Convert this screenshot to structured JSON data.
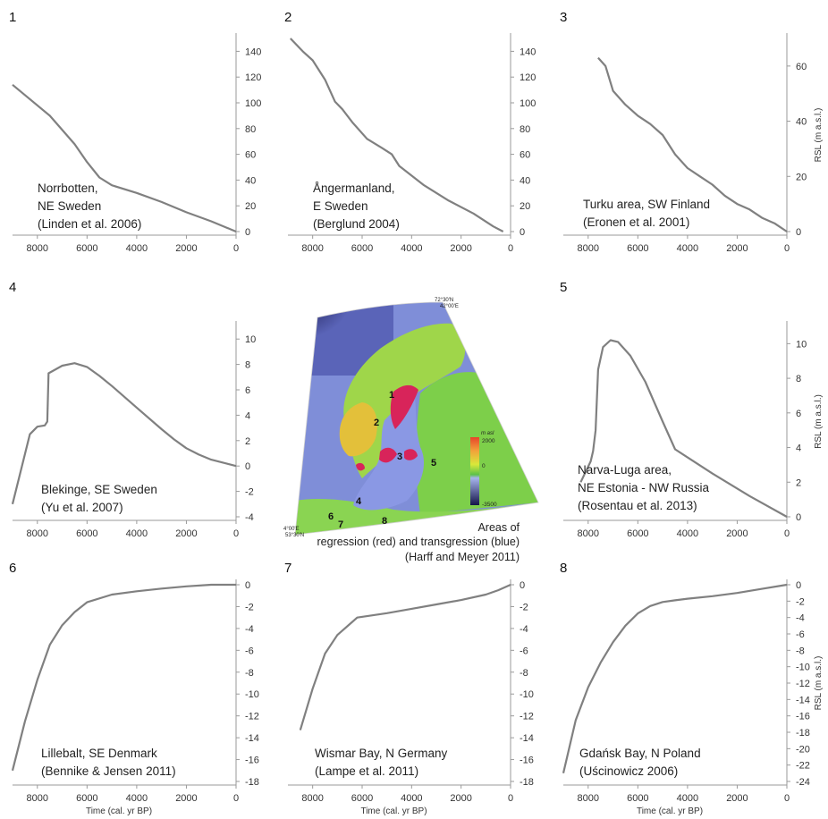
{
  "colors": {
    "curve": "#808080",
    "axis": "#9a9a9a",
    "regression": "#d8245a",
    "transgression": "#8e9be6"
  },
  "map": {
    "coord_top": "72°30'N\n42°00'E",
    "coord_left": "4°00'E\n53°30'N",
    "caption": [
      "Areas of",
      "regression (red) and transgression (blue)",
      "(Harff and Meyer 2011)"
    ],
    "legend_unit": "m asl",
    "legend_ticks": [
      "2000",
      "0",
      "-3500"
    ],
    "site_labels": [
      "1",
      "2",
      "3",
      "4",
      "5",
      "6",
      "7",
      "8"
    ]
  },
  "chart_data": [
    {
      "type": "line",
      "panel": "1",
      "location": [
        "Norrbotten,",
        "NE Sweden",
        "(Linden et al. 2006)"
      ],
      "x": [
        9000,
        7500,
        6500,
        6000,
        5500,
        5000,
        4000,
        3000,
        2000,
        1000,
        0
      ],
      "y": [
        114,
        90,
        68,
        54,
        42,
        36,
        30,
        23,
        15,
        8,
        0
      ],
      "xlim": [
        9000,
        0
      ],
      "ylim": [
        0,
        150
      ],
      "yticks": [
        0,
        20,
        40,
        60,
        80,
        100,
        120,
        140
      ],
      "xticks": [
        8000,
        6000,
        4000,
        2000,
        0
      ],
      "ylabel": "",
      "xlabel": ""
    },
    {
      "type": "line",
      "panel": "2",
      "location": [
        "Ångermanland,",
        "E Sweden",
        "(Berglund 2004)"
      ],
      "x": [
        8900,
        8400,
        8000,
        7500,
        7100,
        6800,
        6400,
        5800,
        5200,
        4800,
        4500,
        3500,
        2500,
        1500,
        700,
        300
      ],
      "y": [
        150,
        140,
        133,
        118,
        101,
        95,
        85,
        72,
        65,
        60,
        51,
        36,
        24,
        14,
        4,
        0
      ],
      "xlim": [
        9000,
        0
      ],
      "ylim": [
        0,
        150
      ],
      "yticks": [
        0,
        20,
        40,
        60,
        80,
        100,
        120,
        140
      ],
      "xticks": [
        8000,
        6000,
        4000,
        2000,
        0
      ],
      "ylabel": "",
      "xlabel": ""
    },
    {
      "type": "line",
      "panel": "3",
      "location": [
        "Turku area, SW Finland",
        "(Eronen et al. 2001)"
      ],
      "x": [
        7600,
        7300,
        7000,
        6500,
        6000,
        5500,
        5000,
        4500,
        4000,
        3500,
        3000,
        2500,
        2000,
        1500,
        1000,
        500,
        0
      ],
      "y": [
        63,
        60,
        51,
        46,
        42,
        39,
        35,
        28,
        23,
        20,
        17,
        13,
        10,
        8,
        5,
        3,
        0
      ],
      "xlim": [
        9000,
        0
      ],
      "ylim": [
        0,
        70
      ],
      "yticks": [
        0,
        20,
        40,
        60
      ],
      "xticks": [
        8000,
        6000,
        4000,
        2000,
        0
      ],
      "ylabel": "RSL (m a.s.l.)",
      "xlabel": ""
    },
    {
      "type": "line",
      "panel": "4",
      "location": [
        "Blekinge, SE Sweden",
        "(Yu et al. 2007)"
      ],
      "x": [
        9000,
        8300,
        8000,
        7700,
        7600,
        7550,
        7000,
        6500,
        6000,
        5500,
        5000,
        4000,
        3000,
        2500,
        2000,
        1500,
        1000,
        0
      ],
      "y": [
        -3,
        2.5,
        3.1,
        3.2,
        3.5,
        7.3,
        7.9,
        8.1,
        7.8,
        7.1,
        6.3,
        4.6,
        2.9,
        2.1,
        1.4,
        0.9,
        0.5,
        0
      ],
      "xlim": [
        9000,
        0
      ],
      "ylim": [
        -4,
        11
      ],
      "yticks": [
        -4,
        -2,
        0,
        2,
        4,
        6,
        8,
        10
      ],
      "xticks": [
        8000,
        6000,
        4000,
        2000,
        0
      ],
      "ylabel": "",
      "xlabel": ""
    },
    {
      "type": "line",
      "panel": "5",
      "location": [
        "Narva-Luga area,",
        "NE Estonia - NW Russia",
        "(Rosentau et al. 2013)"
      ],
      "x": [
        8300,
        7900,
        7800,
        7700,
        7600,
        7400,
        7100,
        6800,
        6300,
        5700,
        5000,
        4500,
        3000,
        1500,
        0
      ],
      "y": [
        2,
        3.2,
        3.8,
        5,
        8.5,
        9.8,
        10.2,
        10.1,
        9.3,
        7.8,
        5.5,
        3.9,
        2.5,
        1.2,
        0
      ],
      "xlim": [
        9000,
        0
      ],
      "ylim": [
        0,
        11
      ],
      "yticks": [
        0,
        2,
        4,
        6,
        8,
        10
      ],
      "xticks": [
        8000,
        6000,
        4000,
        2000,
        0
      ],
      "ylabel": "RSL (m a.s.l.)",
      "xlabel": ""
    },
    {
      "type": "line",
      "panel": "6",
      "location": [
        "Lillebalt, SE Denmark",
        "(Bennike & Jensen 2011)"
      ],
      "x": [
        9000,
        8500,
        8000,
        7500,
        7000,
        6500,
        6000,
        5000,
        4000,
        3000,
        2000,
        1000,
        0
      ],
      "y": [
        -17,
        -12.5,
        -8.7,
        -5.5,
        -3.7,
        -2.5,
        -1.6,
        -0.9,
        -0.6,
        -0.35,
        -0.15,
        0,
        0
      ],
      "xlim": [
        9000,
        0
      ],
      "ylim": [
        -18,
        0
      ],
      "yticks": [
        -18,
        -16,
        -14,
        -12,
        -10,
        -8,
        -6,
        -4,
        -2,
        0
      ],
      "xticks": [
        8000,
        6000,
        4000,
        2000,
        0
      ],
      "ylabel": "",
      "xlabel": "Time (cal. yr BP)"
    },
    {
      "type": "line",
      "panel": "7",
      "location": [
        "Wismar Bay, N Germany",
        "(Lampe et al. 2011)"
      ],
      "x": [
        8500,
        8000,
        7500,
        7000,
        6500,
        6200,
        5000,
        4000,
        3000,
        2000,
        1000,
        500,
        0
      ],
      "y": [
        -13.3,
        -9.5,
        -6.3,
        -4.6,
        -3.6,
        -3,
        -2.6,
        -2.2,
        -1.8,
        -1.4,
        -0.9,
        -0.5,
        0
      ],
      "xlim": [
        9000,
        0
      ],
      "ylim": [
        -18,
        0
      ],
      "yticks": [
        -18,
        -16,
        -14,
        -12,
        -10,
        -8,
        -6,
        -4,
        -2,
        0
      ],
      "xticks": [
        8000,
        6000,
        4000,
        2000,
        0
      ],
      "ylabel": "",
      "xlabel": "Time (cal. yr BP)"
    },
    {
      "type": "line",
      "panel": "8",
      "location": [
        "Gdańsk Bay, N Poland",
        "(Uścinowicz 2006)"
      ],
      "x": [
        9000,
        8500,
        8000,
        7500,
        7000,
        6500,
        6000,
        5500,
        5000,
        4500,
        4000,
        3000,
        2000,
        1000,
        0
      ],
      "y": [
        -23,
        -16.5,
        -12.5,
        -9.5,
        -7,
        -5,
        -3.5,
        -2.6,
        -2.1,
        -1.9,
        -1.7,
        -1.4,
        -1,
        -0.5,
        0
      ],
      "xlim": [
        9000,
        0
      ],
      "ylim": [
        -24,
        0
      ],
      "yticks": [
        -24,
        -22,
        -20,
        -18,
        -16,
        -14,
        -12,
        -10,
        -8,
        -6,
        -4,
        -2,
        0
      ],
      "xticks": [
        8000,
        6000,
        4000,
        2000,
        0
      ],
      "ylabel": "RSL (m a.s.l.)",
      "xlabel": "Time (cal. yr BP)"
    }
  ]
}
